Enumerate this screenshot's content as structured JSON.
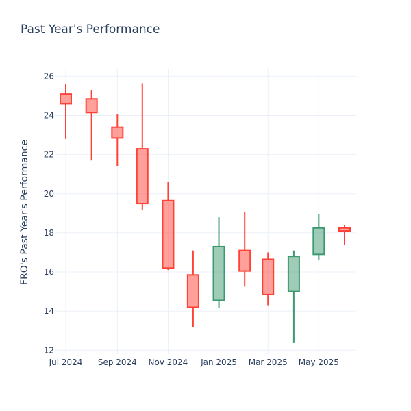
{
  "chart_data": {
    "type": "candlestick",
    "title": "Past Year's Performance",
    "xlabel": "",
    "ylabel": "FRO's Past Year's Performance",
    "x_ticks": [
      "Jul 2024",
      "Sep 2024",
      "Nov 2024",
      "Jan 2025",
      "Mar 2025",
      "May 2025"
    ],
    "y_ticks": [
      12,
      14,
      16,
      18,
      20,
      22,
      24,
      26
    ],
    "ylim": [
      11.8,
      26.4
    ],
    "grid": true,
    "colors": {
      "increasing": "#3d9970",
      "decreasing": "#ff4136"
    },
    "candles": [
      {
        "date": "2024-07-01",
        "open": 25.1,
        "high": 25.6,
        "low": 22.8,
        "close": 24.6
      },
      {
        "date": "2024-08-01",
        "open": 24.85,
        "high": 25.3,
        "low": 21.7,
        "close": 24.15
      },
      {
        "date": "2024-09-01",
        "open": 23.4,
        "high": 24.05,
        "low": 21.4,
        "close": 22.85
      },
      {
        "date": "2024-10-01",
        "open": 22.3,
        "high": 25.65,
        "low": 19.15,
        "close": 19.5
      },
      {
        "date": "2024-11-01",
        "open": 19.65,
        "high": 20.6,
        "low": 16.1,
        "close": 16.2
      },
      {
        "date": "2024-12-01",
        "open": 15.85,
        "high": 17.1,
        "low": 13.2,
        "close": 14.2
      },
      {
        "date": "2025-01-01",
        "open": 14.55,
        "high": 18.8,
        "low": 14.15,
        "close": 17.3
      },
      {
        "date": "2025-02-01",
        "open": 17.1,
        "high": 19.05,
        "low": 15.25,
        "close": 16.05
      },
      {
        "date": "2025-03-01",
        "open": 16.65,
        "high": 17.0,
        "low": 14.3,
        "close": 14.85
      },
      {
        "date": "2025-04-01",
        "open": 15.0,
        "high": 17.1,
        "low": 12.4,
        "close": 16.8
      },
      {
        "date": "2025-05-01",
        "open": 16.9,
        "high": 18.95,
        "low": 16.6,
        "close": 18.25
      },
      {
        "date": "2025-06-01",
        "open": 18.25,
        "high": 18.4,
        "low": 17.4,
        "close": 18.1
      }
    ]
  }
}
